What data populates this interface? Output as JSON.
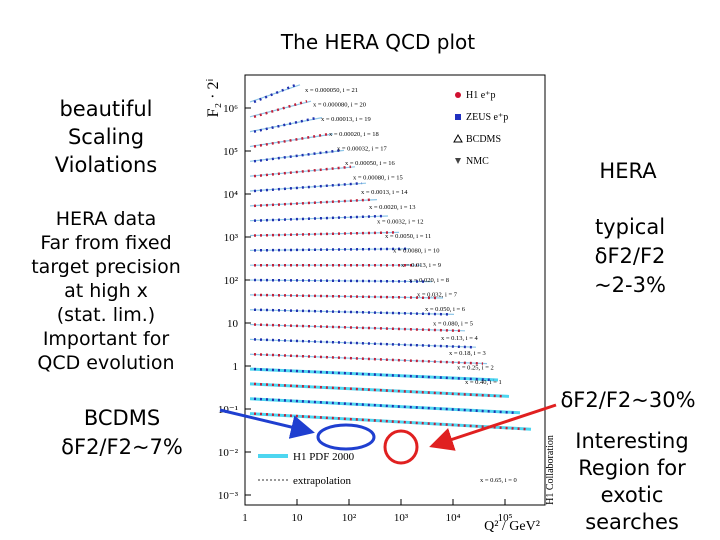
{
  "title": "The HERA QCD plot",
  "left_notes": {
    "scaling": [
      "beautiful",
      "Scaling",
      "Violations"
    ],
    "hera_data": [
      "HERA data",
      "Far from fixed",
      "target precision",
      "at high x",
      "(stat. lim.)",
      "Important for",
      "QCD evolution"
    ],
    "bcdms": [
      "BCDMS",
      "δF2/F2~7%"
    ]
  },
  "right_notes": {
    "hera": "HERA",
    "typical": [
      "typical",
      "δF2/F2",
      "~2-3%"
    ],
    "low_x": "δF2/F2~30%",
    "interesting": [
      "Interesting",
      "Region for",
      "exotic",
      "searches"
    ]
  },
  "figure": {
    "y_label": "F₂ · 2ⁱ",
    "x_label": "Q² / GeV²",
    "y_ticks": [
      "10⁶",
      "10⁵",
      "10⁴",
      "10³",
      "10²",
      "10",
      "1",
      "10⁻¹",
      "10⁻²",
      "10⁻³"
    ],
    "x_ticks": [
      "1",
      "10",
      "10²",
      "10³",
      "10⁴",
      "10⁵"
    ],
    "legend": [
      "H1 e⁺p",
      "ZEUS e⁺p",
      "BCDMS",
      "NMC"
    ],
    "fit_legend": [
      "H1 PDF 2000",
      "extrapolation"
    ],
    "credit": "H1 Collaboration",
    "series_labels": [
      "x = 0.000050, i = 21",
      "x = 0.000080, i = 20",
      "x = 0.00013, i = 19",
      "x = 0.00020, i = 18",
      "x = 0.00032, i = 17",
      "x = 0.00050, i = 16",
      "x = 0.00080, i = 15",
      "x = 0.0013, i = 14",
      "x = 0.0020, i = 13",
      "x = 0.0032, i = 12",
      "x = 0.0050, i = 11",
      "x = 0.0080, i = 10",
      "x = 0.013, i = 9",
      "x = 0.020, i = 8",
      "x = 0.032, i = 7",
      "x = 0.050, i = 6",
      "x = 0.080, i = 5",
      "x = 0.13, i = 4",
      "x = 0.18, i = 3",
      "x = 0.25, i = 2",
      "x = 0.40, i = 1",
      "x = 0.65, i = 0"
    ]
  }
}
